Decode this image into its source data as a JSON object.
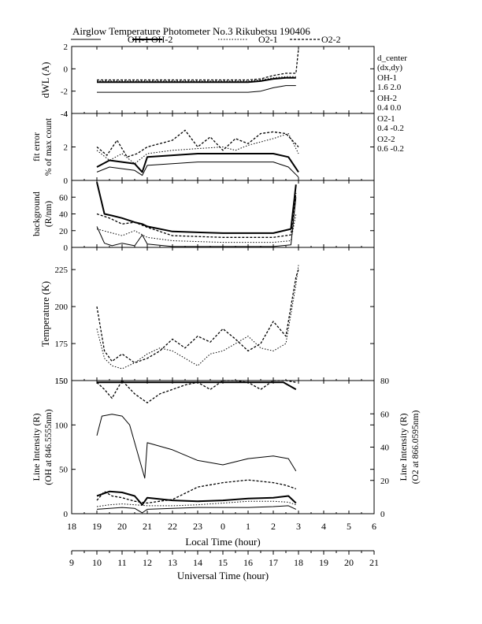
{
  "title": "Airglow Temperature Photometer No.3  Rikubetsu    190406",
  "legend": [
    {
      "label": "OH-1",
      "style": "solid-thin"
    },
    {
      "label": "OH-2",
      "style": "solid-thick"
    },
    {
      "label": "O2-1",
      "style": "dotted"
    },
    {
      "label": "O2-2",
      "style": "dashed"
    }
  ],
  "side_notes": {
    "d_center_label": "d_center",
    "d_center_sub": "(dx,dy)",
    "items": [
      {
        "name": "OH-1",
        "values": "1.6   2.0"
      },
      {
        "name": "OH-2",
        "values": "0.4   0.0"
      },
      {
        "name": "O2-1",
        "values": "0.4  -0.2"
      },
      {
        "name": "O2-2",
        "values": "0.6  -0.2"
      }
    ]
  },
  "axes": {
    "local_time_label": "Local Time (hour)",
    "universal_time_label": "Universal Time (hour)",
    "local_ticks": [
      "18",
      "19",
      "20",
      "21",
      "22",
      "23",
      "0",
      "1",
      "2",
      "3",
      "4",
      "5",
      "6"
    ],
    "ut_ticks": [
      "9",
      "10",
      "11",
      "12",
      "13",
      "14",
      "15",
      "16",
      "17",
      "18",
      "19",
      "20",
      "21"
    ]
  },
  "chart_data": [
    {
      "type": "line",
      "panel": "dwl",
      "ylabel": "dWL (A)",
      "ylim": [
        -4,
        2
      ],
      "yticks": [
        "-4",
        "-2",
        "0",
        "2"
      ],
      "x_unit": "hours since 18 LT",
      "xlim": [
        0,
        12
      ],
      "series": [
        {
          "name": "OH-1",
          "x": [
            1,
            2,
            3,
            4,
            5,
            6,
            7,
            7.5,
            8,
            8.5,
            8.9
          ],
          "y": [
            -2.1,
            -2.1,
            -2.1,
            -2.1,
            -2.1,
            -2.1,
            -2.1,
            -2.0,
            -1.7,
            -1.5,
            -1.5
          ]
        },
        {
          "name": "OH-2",
          "x": [
            1,
            2,
            3,
            4,
            5,
            6,
            7,
            7.5,
            8,
            8.5,
            8.9
          ],
          "y": [
            -1.2,
            -1.2,
            -1.2,
            -1.2,
            -1.2,
            -1.2,
            -1.2,
            -1.1,
            -0.9,
            -0.8,
            -0.8
          ]
        },
        {
          "name": "O2-1",
          "x": [
            1,
            2,
            3,
            4,
            5,
            6,
            7,
            7.5,
            8,
            8.5,
            8.9
          ],
          "y": [
            -1.1,
            -1.1,
            -1.1,
            -1.1,
            -1.1,
            -1.1,
            -1.1,
            -1.0,
            -0.8,
            -0.7,
            -0.7
          ]
        },
        {
          "name": "O2-2",
          "x": [
            1,
            2,
            3,
            4,
            5,
            6,
            7,
            7.5,
            8,
            8.5,
            8.9,
            9.0
          ],
          "y": [
            -1.0,
            -1.0,
            -1.0,
            -1.0,
            -1.0,
            -1.0,
            -1.0,
            -0.9,
            -0.6,
            -0.4,
            -0.4,
            1.8
          ]
        }
      ]
    },
    {
      "type": "line",
      "panel": "fit-error",
      "ylabel": "fit error",
      "ylabel2": "% of max count",
      "ylim": [
        0,
        4
      ],
      "yticks": [
        "0",
        "2",
        "4"
      ],
      "x_unit": "hours since 18 LT",
      "xlim": [
        0,
        12
      ],
      "series": [
        {
          "name": "OH-1",
          "x": [
            1,
            1.5,
            2,
            2.5,
            2.8,
            3,
            4,
            5,
            6,
            7,
            8,
            8.6,
            9.0
          ],
          "y": [
            0.5,
            0.8,
            0.7,
            0.6,
            0.3,
            0.9,
            1.0,
            1.1,
            1.1,
            1.1,
            1.1,
            0.8,
            0.2
          ]
        },
        {
          "name": "OH-2",
          "x": [
            1,
            1.5,
            2,
            2.5,
            2.8,
            3,
            4,
            5,
            6,
            7,
            8,
            8.6,
            9.0
          ],
          "y": [
            0.8,
            1.2,
            1.1,
            1.0,
            0.5,
            1.4,
            1.5,
            1.6,
            1.6,
            1.6,
            1.6,
            1.4,
            0.5
          ]
        },
        {
          "name": "O2-1",
          "x": [
            1,
            1.5,
            2,
            2.5,
            3,
            4,
            5,
            6,
            6.5,
            7,
            8,
            8.6,
            9.0
          ],
          "y": [
            1.8,
            1.2,
            1.6,
            1.0,
            1.6,
            1.8,
            1.9,
            2.0,
            1.8,
            2.1,
            2.5,
            2.8,
            1.6
          ]
        },
        {
          "name": "O2-2",
          "x": [
            1,
            1.4,
            1.8,
            2.2,
            2.6,
            3,
            3.5,
            4,
            4.5,
            5,
            5.5,
            6,
            6.5,
            7,
            7.5,
            8,
            8.5,
            9.0
          ],
          "y": [
            2.0,
            1.5,
            2.4,
            1.4,
            1.6,
            2.0,
            2.2,
            2.4,
            3.0,
            2.0,
            2.6,
            1.8,
            2.5,
            2.2,
            2.8,
            2.9,
            2.8,
            2.0
          ]
        }
      ]
    },
    {
      "type": "line",
      "panel": "background",
      "ylabel": "background",
      "ylabel2": "(R/nm)",
      "ylim": [
        0,
        80
      ],
      "yticks": [
        "0",
        "20",
        "40",
        "60"
      ],
      "x_unit": "hours since 18 LT",
      "xlim": [
        0,
        12
      ],
      "series": [
        {
          "name": "OH-1",
          "x": [
            1,
            1.3,
            1.6,
            2,
            2.5,
            2.8,
            3,
            4,
            5,
            6,
            7,
            8,
            8.7,
            8.9
          ],
          "y": [
            25,
            5,
            2,
            5,
            2,
            15,
            4,
            1,
            1,
            1,
            1,
            1,
            3,
            60
          ]
        },
        {
          "name": "OH-2",
          "x": [
            1,
            1.3,
            1.6,
            2,
            2.5,
            2.8,
            3,
            4,
            5,
            6,
            7,
            8,
            8.7,
            8.9
          ],
          "y": [
            78,
            40,
            38,
            35,
            30,
            28,
            25,
            19,
            18,
            17,
            17,
            17,
            22,
            75
          ]
        },
        {
          "name": "O2-1",
          "x": [
            1,
            1.5,
            2,
            2.5,
            3,
            4,
            5,
            6,
            7,
            8,
            8.7,
            8.9
          ],
          "y": [
            22,
            18,
            14,
            20,
            12,
            8,
            7,
            6,
            6,
            6,
            8,
            40
          ]
        },
        {
          "name": "O2-2",
          "x": [
            1,
            1.5,
            2,
            2.5,
            3,
            4,
            5,
            6,
            7,
            8,
            8.7,
            8.9
          ],
          "y": [
            40,
            35,
            28,
            30,
            24,
            14,
            13,
            12,
            12,
            12,
            15,
            65
          ]
        }
      ]
    },
    {
      "type": "line",
      "panel": "temperature",
      "ylabel": "Temperature (K)",
      "ylim": [
        150,
        240
      ],
      "yticks": [
        "150",
        "175",
        "200",
        "225"
      ],
      "x_unit": "hours since 18 LT",
      "xlim": [
        0,
        12
      ],
      "series": [
        {
          "name": "O2-1",
          "x": [
            1,
            1.3,
            1.6,
            2,
            2.5,
            3,
            3.5,
            4,
            4.5,
            5,
            5.5,
            6,
            6.5,
            7,
            7.5,
            8,
            8.5,
            8.9,
            9.0
          ],
          "y": [
            185,
            165,
            160,
            158,
            162,
            168,
            172,
            170,
            165,
            160,
            168,
            170,
            175,
            180,
            172,
            170,
            175,
            215,
            228
          ]
        },
        {
          "name": "O2-2",
          "x": [
            1,
            1.3,
            1.6,
            2,
            2.5,
            3,
            3.5,
            4,
            4.5,
            5,
            5.5,
            6,
            6.5,
            7,
            7.5,
            8,
            8.5,
            8.9,
            9.0
          ],
          "y": [
            200,
            170,
            163,
            168,
            162,
            165,
            170,
            178,
            172,
            180,
            176,
            185,
            178,
            170,
            175,
            190,
            180,
            220,
            225
          ]
        }
      ]
    },
    {
      "type": "line",
      "panel": "intensity",
      "ylabel": "Line Intensity (R)",
      "ylabel2": "(OH at 846.5555nm)",
      "y2label": "Line Intensity (R)",
      "y2label2": "(O2 at 866.0595nm)",
      "ylim": [
        0,
        150
      ],
      "y2lim": [
        0,
        80
      ],
      "yticks": [
        "0",
        "50",
        "100",
        "150"
      ],
      "y2ticks": [
        "0",
        "20",
        "40",
        "60",
        "80"
      ],
      "x_unit": "hours since 18 LT",
      "xlim": [
        0,
        12
      ],
      "series": [
        {
          "name": "OH-1",
          "x": [
            1,
            1.5,
            2,
            2.5,
            2.8,
            3,
            4,
            5,
            6,
            7,
            8,
            8.6,
            8.9
          ],
          "y": [
            5,
            6,
            7,
            6,
            1,
            5,
            6,
            7,
            7,
            7,
            8,
            9,
            5
          ]
        },
        {
          "name": "OH-2",
          "x": [
            1,
            1.5,
            2,
            2.5,
            2.8,
            3,
            4,
            5,
            6,
            7,
            8,
            8.6,
            8.9
          ],
          "y": [
            20,
            25,
            24,
            20,
            10,
            18,
            15,
            14,
            15,
            17,
            18,
            20,
            12
          ]
        },
        {
          "name": "OH-1-top",
          "x": [
            1,
            1.2,
            1.6,
            2,
            2.3,
            2.7,
            2.9,
            3,
            4,
            5,
            6,
            7,
            8,
            8.6,
            8.9
          ],
          "y": [
            88,
            110,
            112,
            110,
            100,
            60,
            40,
            80,
            72,
            60,
            55,
            62,
            65,
            62,
            48
          ]
        },
        {
          "name": "O2-1",
          "x": [
            1,
            1.5,
            2,
            2.5,
            3,
            4,
            5,
            6,
            7,
            8,
            8.6,
            8.9
          ],
          "y": [
            8,
            10,
            11,
            10,
            9,
            9,
            10,
            12,
            14,
            14,
            13,
            10
          ]
        },
        {
          "name": "O2-2",
          "x": [
            1,
            1.3,
            1.6,
            2,
            2.5,
            3,
            3.5,
            4,
            5,
            6,
            7,
            8,
            8.5,
            8.9
          ],
          "y": [
            15,
            25,
            20,
            18,
            14,
            12,
            14,
            16,
            30,
            35,
            38,
            35,
            32,
            28
          ]
        },
        {
          "name": "O2-2-top",
          "x": [
            1,
            1.3,
            1.6,
            2,
            2.5,
            3,
            3.5,
            4,
            4.5,
            5,
            5.5,
            6,
            6.5,
            7,
            7.5,
            8,
            8.5,
            8.9
          ],
          "y": [
            148,
            140,
            130,
            150,
            135,
            125,
            135,
            140,
            145,
            148,
            140,
            150,
            155,
            148,
            140,
            150,
            150,
            148
          ]
        },
        {
          "name": "OH-thick-top",
          "x": [
            1,
            7.8,
            8.4,
            8.9
          ],
          "y": [
            148,
            148,
            148,
            140
          ]
        }
      ]
    }
  ]
}
